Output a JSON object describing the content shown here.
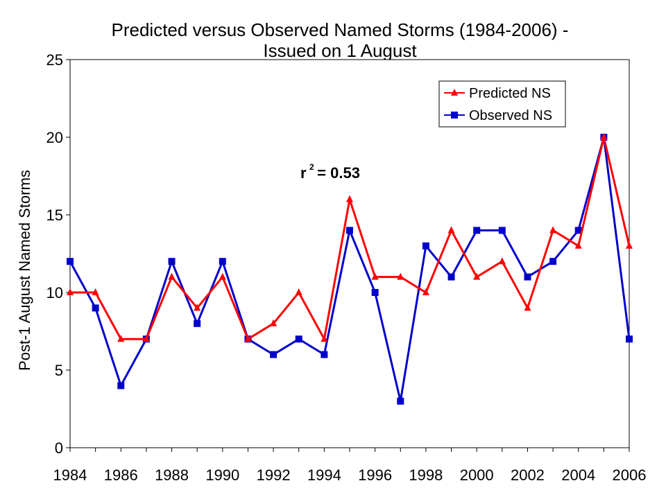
{
  "chart_data": {
    "type": "line",
    "title_line1": "Predicted versus Observed Named Storms (1984-2006) -",
    "title_line2": "Issued on 1 August",
    "xlabel": "",
    "ylabel": "Post-1 August Named Storms",
    "x": [
      1984,
      1985,
      1986,
      1987,
      1988,
      1989,
      1990,
      1991,
      1992,
      1993,
      1994,
      1995,
      1996,
      1997,
      1998,
      1999,
      2000,
      2001,
      2002,
      2003,
      2004,
      2005,
      2006
    ],
    "x_tick_labels": [
      "1984",
      "1986",
      "1988",
      "1990",
      "1992",
      "1994",
      "1996",
      "1998",
      "2000",
      "2002",
      "2004",
      "2006"
    ],
    "y_tick_labels": [
      "0",
      "5",
      "10",
      "15",
      "20",
      "25"
    ],
    "xlim": [
      1984,
      2006
    ],
    "ylim": [
      0,
      25
    ],
    "grid": false,
    "legend_position": "top-right",
    "series": [
      {
        "name": "Predicted NS",
        "color": "#ff0000",
        "marker": "triangle",
        "values": [
          10,
          10,
          7,
          7,
          11,
          9,
          11,
          7,
          8,
          10,
          7,
          16,
          11,
          11,
          10,
          14,
          11,
          12,
          9,
          14,
          13,
          20,
          13
        ]
      },
      {
        "name": "Observed NS",
        "color": "#0000cc",
        "marker": "square",
        "values": [
          12,
          9,
          4,
          7,
          12,
          8,
          12,
          7,
          6,
          7,
          6,
          14,
          10,
          3,
          13,
          11,
          14,
          14,
          11,
          12,
          14,
          20,
          7
        ]
      }
    ],
    "annotation": {
      "base": "r",
      "superscript": "2",
      "text": " = 0.53"
    }
  }
}
